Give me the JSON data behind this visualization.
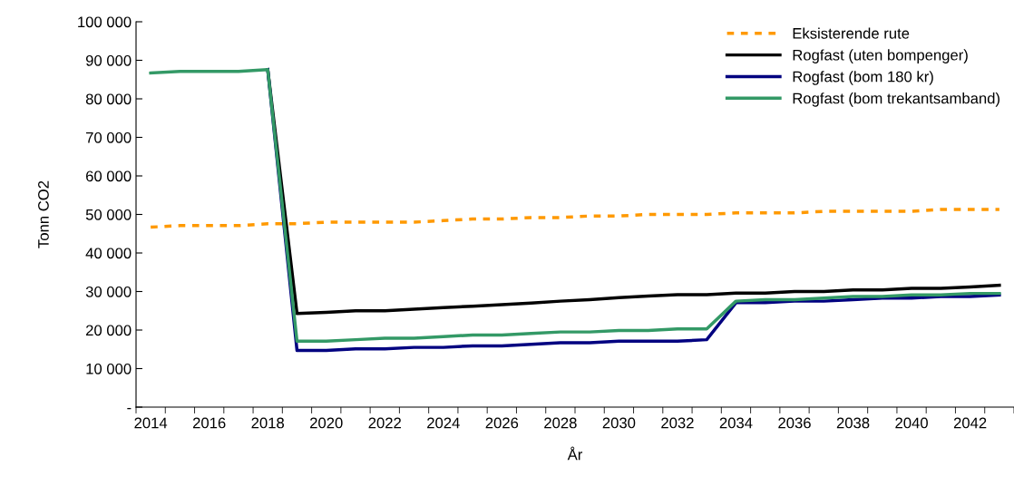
{
  "chart_data": {
    "type": "line",
    "xlabel": "År",
    "ylabel": "Tonn CO2",
    "categories": [
      "2014",
      null,
      "2016",
      null,
      "2018",
      null,
      "2020",
      null,
      "2022",
      null,
      "2024",
      null,
      "2026",
      null,
      "2028",
      null,
      "2030",
      null,
      "2032",
      null,
      "2034",
      null,
      "2036",
      null,
      "2038",
      null,
      "2040",
      null,
      "2042",
      null
    ],
    "series": [
      {
        "name": "Eksisterende rute",
        "color": "#ff9900",
        "line_style": "dashed",
        "values": [
          46700,
          47100,
          47100,
          47100,
          47600,
          47600,
          48000,
          48000,
          48000,
          48000,
          48400,
          48800,
          48800,
          49200,
          49200,
          49600,
          49600,
          50000,
          50000,
          50000,
          50400,
          50400,
          50400,
          50800,
          50800,
          50800,
          50800,
          51300,
          51300,
          51300
        ]
      },
      {
        "name": "Rogfast (uten bompenger)",
        "color": "#000000",
        "line_style": "solid",
        "values": [
          null,
          null,
          null,
          null,
          87600,
          24300,
          24600,
          25000,
          25000,
          25400,
          25800,
          26200,
          26600,
          27000,
          27500,
          27900,
          28400,
          28800,
          29200,
          29200,
          29600,
          29600,
          30000,
          30000,
          30400,
          30400,
          30800,
          30800,
          31200,
          31600
        ]
      },
      {
        "name": "Rogfast (bom 180 kr)",
        "color": "#000080",
        "line_style": "solid",
        "values": [
          null,
          null,
          null,
          null,
          87600,
          14700,
          14700,
          15100,
          15100,
          15500,
          15500,
          15900,
          15900,
          16300,
          16700,
          16700,
          17100,
          17100,
          17100,
          17500,
          27100,
          27100,
          27500,
          27500,
          27900,
          28300,
          28300,
          28700,
          28700,
          29100
        ]
      },
      {
        "name": "Rogfast (bom trekantsamband)",
        "color": "#339966",
        "line_style": "solid",
        "values": [
          86700,
          87100,
          87100,
          87100,
          87600,
          17100,
          17100,
          17500,
          17900,
          17900,
          18300,
          18700,
          18700,
          19100,
          19500,
          19500,
          19900,
          19900,
          20300,
          20300,
          27500,
          27900,
          27900,
          28300,
          28700,
          28700,
          29100,
          29100,
          29500,
          29500
        ]
      }
    ],
    "ylim": [
      0,
      100000
    ],
    "yticks": [
      {
        "value": 0,
        "label": "-"
      },
      {
        "value": 10000,
        "label": "10 000"
      },
      {
        "value": 20000,
        "label": "20 000"
      },
      {
        "value": 30000,
        "label": "30 000"
      },
      {
        "value": 40000,
        "label": "40 000"
      },
      {
        "value": 50000,
        "label": "50 000"
      },
      {
        "value": 60000,
        "label": "60 000"
      },
      {
        "value": 70000,
        "label": "70 000"
      },
      {
        "value": 80000,
        "label": "80 000"
      },
      {
        "value": 90000,
        "label": "90 000"
      },
      {
        "value": 100000,
        "label": "100 000"
      }
    ],
    "grid": false,
    "legend": "top right",
    "marker": "none"
  }
}
